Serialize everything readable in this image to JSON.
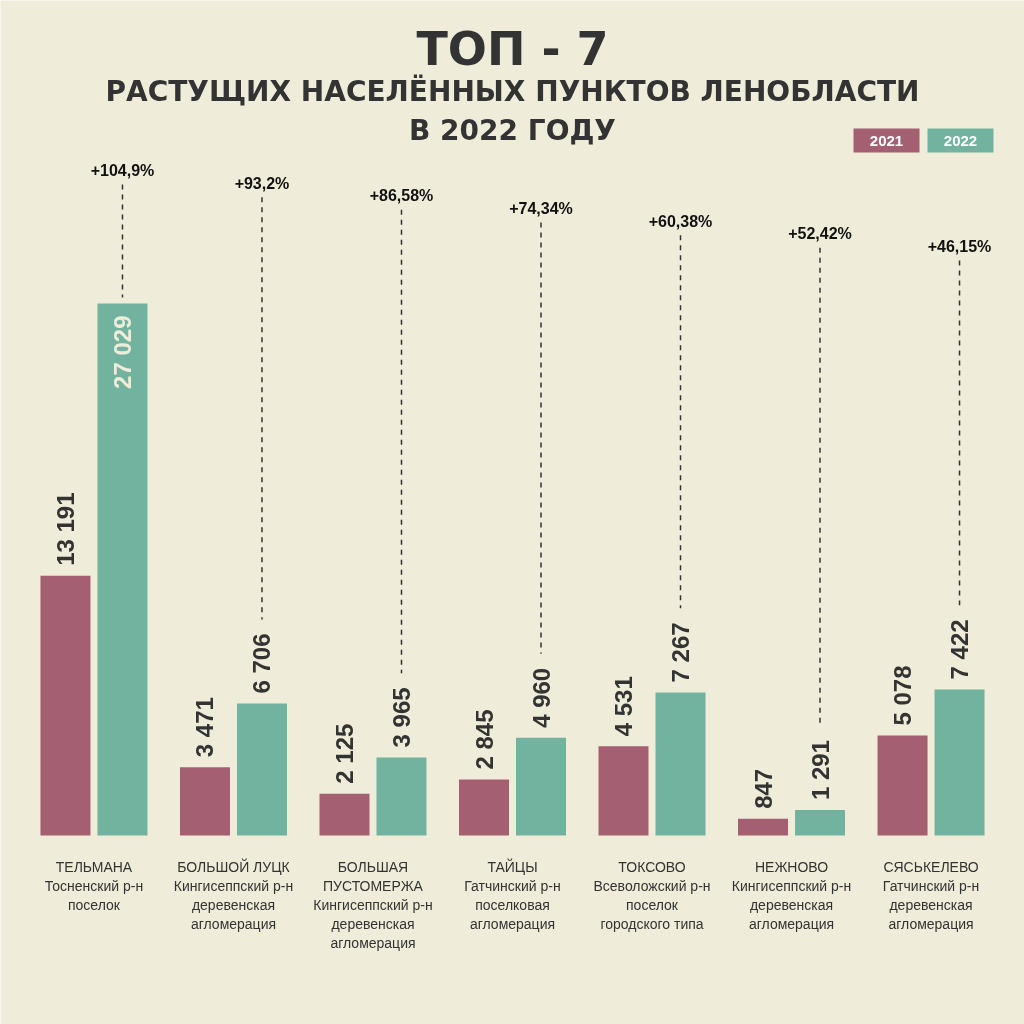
{
  "chart_data": {
    "type": "bar",
    "title": "ТОП - 7",
    "subtitle": "РАСТУЩИХ НАСЕЛЁННЫХ ПУНКТОВ ЛЕНОБЛАСТИ\nВ 2022 ГОДУ",
    "categories": [
      "ТЕЛЬМАНА\nТосненский р-н\nпоселок",
      "БОЛЬШОЙ ЛУЦК\nКингисеппский р-н\nдеревенская\nагломерация",
      "БОЛЬШАЯ ПУСТОМЕРЖА\nКингисеппский р-н\nдеревенская\nагломерация",
      "ТАЙЦЫ\nГатчинский р-н\nпоселковая\nагломерация",
      "ТОКСОВО\nВсеволожский р-н\nпоселок\nгородского типа",
      "НЕЖНОВО\nКингисеппский р-н\nдеревенская\nагломерация",
      "СЯСЬКЕЛЕВО\nГатчинский р-н\nдеревенская\nагломерация"
    ],
    "series": [
      {
        "name": "2021",
        "color": "#a45f72",
        "values": [
          13191,
          3471,
          2125,
          2845,
          4531,
          847,
          5078
        ],
        "value_labels": [
          "13 191",
          "3 471",
          "2 125",
          "2 845",
          "4 531",
          "847",
          "5 078"
        ]
      },
      {
        "name": "2022",
        "color": "#72b3a0",
        "values": [
          27029,
          6706,
          3965,
          4960,
          7267,
          1291,
          7422
        ],
        "value_labels": [
          "27 029",
          "6 706",
          "3 965",
          "4 960",
          "7 267",
          "1 291",
          "7 422"
        ]
      }
    ],
    "annotations": [
      "+104,9%",
      "+93,2%",
      "+86,58%",
      "+74,34%",
      "+60,38%",
      "+52,42%",
      "+46,15%"
    ],
    "legend": "top right"
  }
}
